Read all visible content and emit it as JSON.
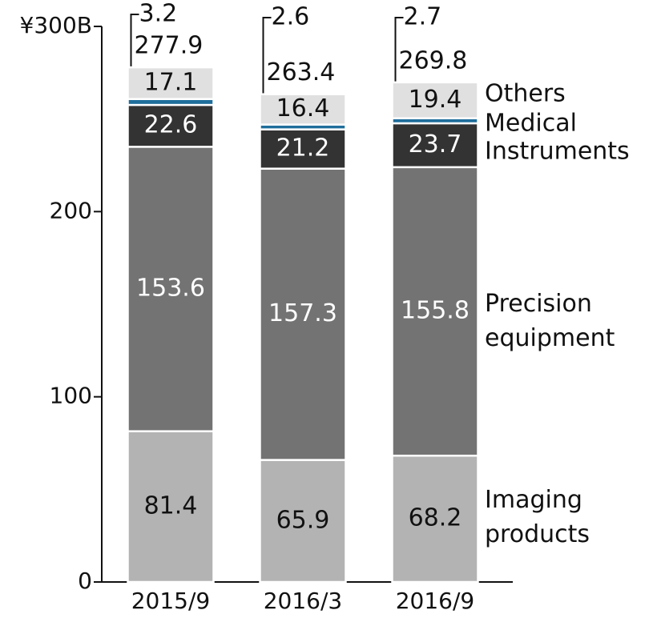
{
  "chart_data": {
    "type": "stacked_bar",
    "categories": [
      "2015/9",
      "2016/3",
      "2016/9"
    ],
    "series": [
      {
        "name": "Imaging products",
        "color": "#b3b3b3",
        "values": [
          81.4,
          65.9,
          68.2
        ]
      },
      {
        "name": "Precision equipment",
        "color": "#737373",
        "values": [
          153.6,
          157.3,
          155.8
        ]
      },
      {
        "name": "Instruments",
        "color": "#333333",
        "values": [
          22.6,
          21.2,
          23.7
        ]
      },
      {
        "name": "Medical",
        "color": "#1f6e9c",
        "values": [
          3.2,
          2.6,
          2.7
        ]
      },
      {
        "name": "Others",
        "color": "#e0e0e0",
        "values": [
          17.1,
          16.4,
          19.4
        ]
      }
    ],
    "totals": [
      277.9,
      263.4,
      269.8
    ],
    "ylim": [
      0,
      300
    ],
    "yticks": [
      0,
      100,
      200,
      {
        "value": 300,
        "label": "¥300B"
      }
    ],
    "grid": false
  }
}
